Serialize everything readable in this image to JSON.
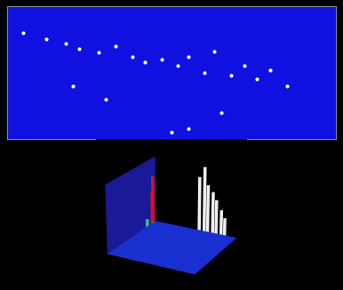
{
  "chart_data": [
    {
      "type": "scatter",
      "x": [
        5,
        12,
        18,
        22,
        28,
        33,
        38,
        42,
        47,
        52,
        55,
        60,
        63,
        68,
        72,
        76,
        80,
        85,
        50,
        55,
        30,
        20,
        65
      ],
      "y": [
        80,
        75,
        72,
        68,
        65,
        70,
        62,
        58,
        60,
        55,
        62,
        50,
        66,
        48,
        55,
        45,
        52,
        40,
        5,
        8,
        30,
        40,
        20
      ],
      "color": "#ffffff",
      "xlim": [
        0,
        100
      ],
      "ylim": [
        0,
        100
      ],
      "tick_labels": false
    },
    {
      "type": "peaks",
      "x": [
        20,
        22,
        25,
        10,
        15,
        60,
        65,
        70,
        75,
        80,
        85,
        90
      ],
      "y": [
        60,
        55,
        40,
        65,
        70,
        90,
        92,
        90,
        92,
        90,
        92,
        90
      ],
      "values": [
        90,
        70,
        35,
        20,
        15,
        85,
        100,
        75,
        65,
        55,
        40,
        30
      ],
      "colors": [
        "#e01010",
        "#e01010",
        "#e01010",
        "#20c0a0",
        "#30d040",
        "#f0f0f0",
        "#f0f0f0",
        "#f0f0f0",
        "#f0f0f0",
        "#f0f0f0",
        "#f0f0f0",
        "#f0f0f0"
      ],
      "xlim": [
        0,
        100
      ],
      "ylim": [
        0,
        100
      ],
      "zlim": [
        0,
        100
      ],
      "tick_labels": false
    }
  ]
}
